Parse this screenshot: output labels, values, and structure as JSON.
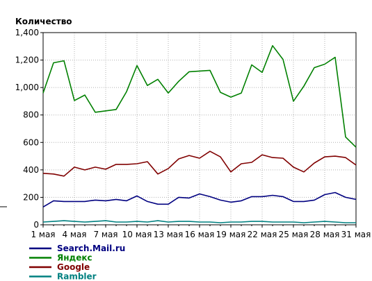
{
  "chart_data": {
    "type": "line",
    "title": "",
    "xlabel": "",
    "ylabel": "Количество",
    "ylim": [
      0,
      1400
    ],
    "y_ticks": [
      0,
      200,
      400,
      600,
      800,
      1000,
      1200,
      1400
    ],
    "y_tick_labels": [
      "0",
      "200",
      "400",
      "600",
      "800",
      "1,000",
      "1,200",
      "1,400"
    ],
    "grid": true,
    "legend_position": "bottom-left",
    "x": [
      "1 мая",
      "2 мая",
      "3 мая",
      "4 мая",
      "5 мая",
      "6 мая",
      "7 мая",
      "8 мая",
      "9 мая",
      "10 мая",
      "11 мая",
      "12 мая",
      "13 мая",
      "14 мая",
      "15 мая",
      "16 мая",
      "17 мая",
      "18 мая",
      "19 мая",
      "20 мая",
      "21 мая",
      "22 мая",
      "23 мая",
      "24 мая",
      "25 мая",
      "26 мая",
      "27 мая",
      "28 мая",
      "29 мая",
      "30 мая",
      "31 мая"
    ],
    "x_tick_labels": [
      "1 мая",
      "4 мая",
      "7 мая",
      "10 мая",
      "13 мая",
      "16 мая",
      "19 мая",
      "22 мая",
      "25 мая",
      "28 мая",
      "31 мая"
    ],
    "series": [
      {
        "name": "Search.Mail.ru",
        "color": "#000080",
        "values": [
          130,
          175,
          170,
          170,
          170,
          180,
          175,
          185,
          175,
          210,
          170,
          150,
          150,
          200,
          195,
          225,
          205,
          180,
          165,
          175,
          205,
          205,
          215,
          205,
          170,
          170,
          180,
          220,
          235,
          200,
          185
        ]
      },
      {
        "name": "Яндекс",
        "color": "#008000",
        "values": [
          960,
          1180,
          1195,
          905,
          945,
          820,
          830,
          840,
          970,
          1160,
          1015,
          1060,
          960,
          1045,
          1115,
          1120,
          1125,
          965,
          930,
          960,
          1165,
          1110,
          1305,
          1205,
          900,
          1010,
          1145,
          1170,
          1220,
          640,
          565
        ]
      },
      {
        "name": "Google",
        "color": "#800000",
        "values": [
          375,
          370,
          355,
          420,
          400,
          420,
          405,
          440,
          440,
          445,
          460,
          370,
          410,
          480,
          505,
          485,
          535,
          495,
          385,
          445,
          455,
          510,
          490,
          485,
          420,
          385,
          450,
          495,
          500,
          490,
          435
        ]
      },
      {
        "name": "Rambler",
        "color": "#008080",
        "values": [
          20,
          25,
          30,
          25,
          20,
          25,
          30,
          20,
          20,
          25,
          20,
          30,
          20,
          25,
          25,
          20,
          20,
          15,
          20,
          20,
          25,
          25,
          20,
          20,
          20,
          15,
          20,
          25,
          20,
          15,
          15
        ]
      }
    ]
  }
}
